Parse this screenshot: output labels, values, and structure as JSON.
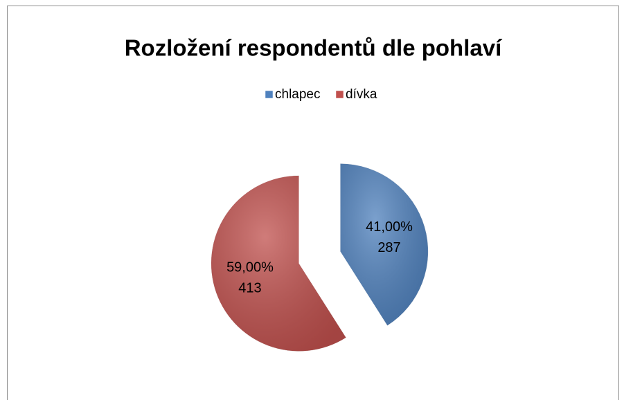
{
  "chart_data": {
    "type": "pie",
    "title": "Rozložení respondentů dle pohlaví",
    "categories": [
      "chlapec",
      "dívka"
    ],
    "values": [
      41,
      59
    ],
    "value_labels": [
      "41,00%",
      "59,00%"
    ],
    "counts": [
      287,
      413
    ],
    "colors": [
      "#4f81bd",
      "#c0504d"
    ],
    "legend": "top",
    "exploded": true
  }
}
